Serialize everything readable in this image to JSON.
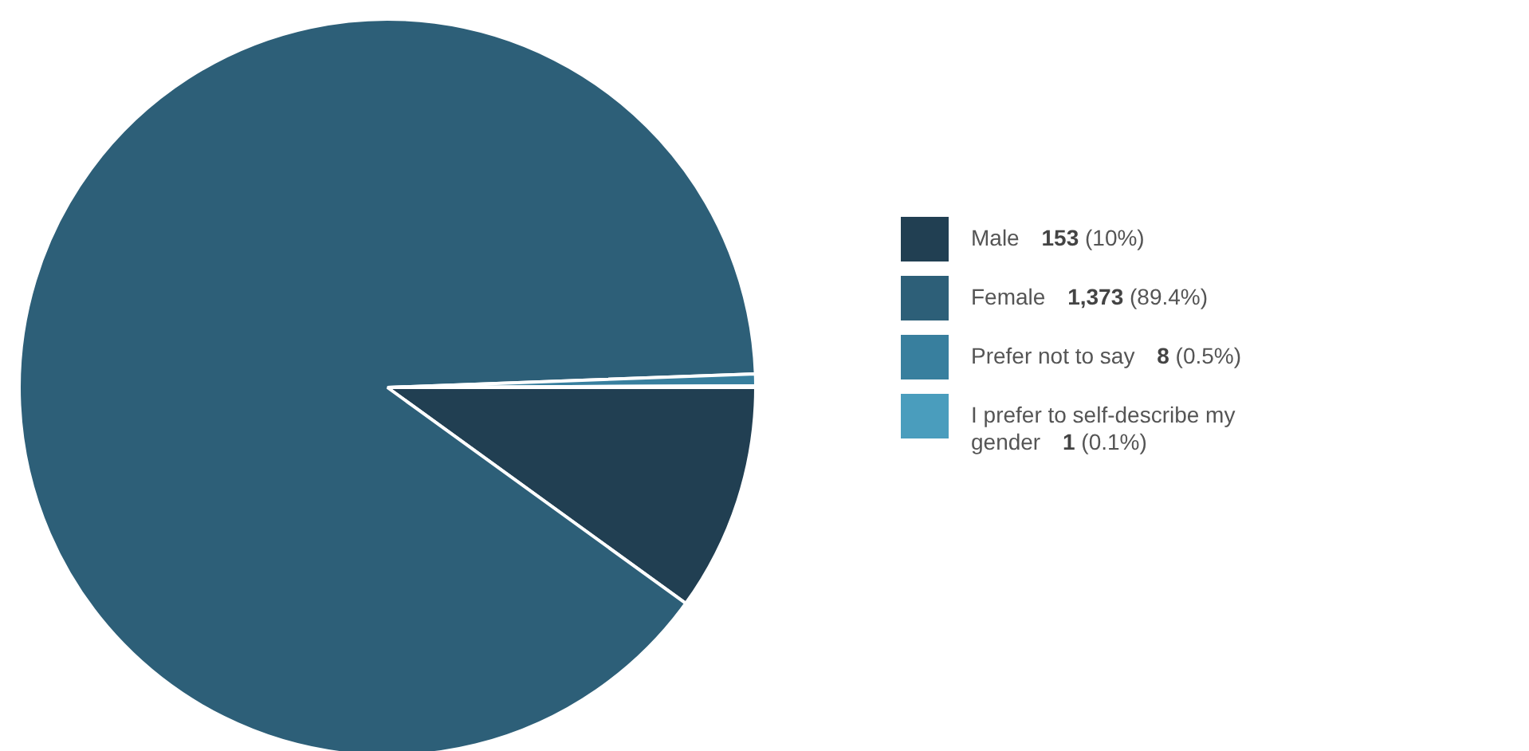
{
  "chart_data": {
    "type": "pie",
    "categories": [
      "Male",
      "Female",
      "Prefer not to say",
      "I prefer to self-describe my gender"
    ],
    "values": [
      153,
      1373,
      8,
      1
    ],
    "colors": [
      "#213f52",
      "#2d5f78",
      "#387f9e",
      "#4a9dbd"
    ],
    "value_labels": [
      "153 (10%)",
      "1,373 (89.4%)",
      "8 (0.5%)",
      "1 (0.1%)"
    ],
    "legend": "right"
  }
}
